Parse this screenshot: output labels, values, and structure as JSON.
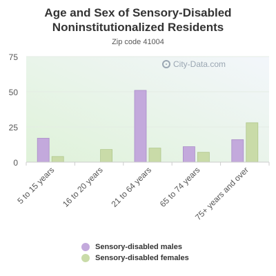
{
  "title": "Age and Sex of Sensory-Disabled Noninstitutionalized Residents",
  "subtitle": "Zip code 41004",
  "watermark": "City-Data.com",
  "colors": {
    "males": "#c3a9dc",
    "females": "#c9dba8",
    "plot_bg_top": "#f3f6fb",
    "plot_bg_bottom": "#dff2d9"
  },
  "chart_data": {
    "type": "bar",
    "title": "Age and Sex of Sensory-Disabled Noninstitutionalized Residents",
    "subtitle": "Zip code 41004",
    "categories": [
      "5 to 15 years",
      "16 to 20 years",
      "21 to 64 years",
      "65 to 74 years",
      "75+ years and over"
    ],
    "series": [
      {
        "name": "Sensory-disabled males",
        "values": [
          17,
          0,
          51,
          11,
          16
        ]
      },
      {
        "name": "Sensory-disabled females",
        "values": [
          4,
          9,
          10,
          7,
          28
        ]
      }
    ],
    "ylim": [
      0,
      75
    ],
    "yticks": [
      0,
      25,
      50,
      75
    ],
    "grid": true,
    "legend": "bottom"
  }
}
